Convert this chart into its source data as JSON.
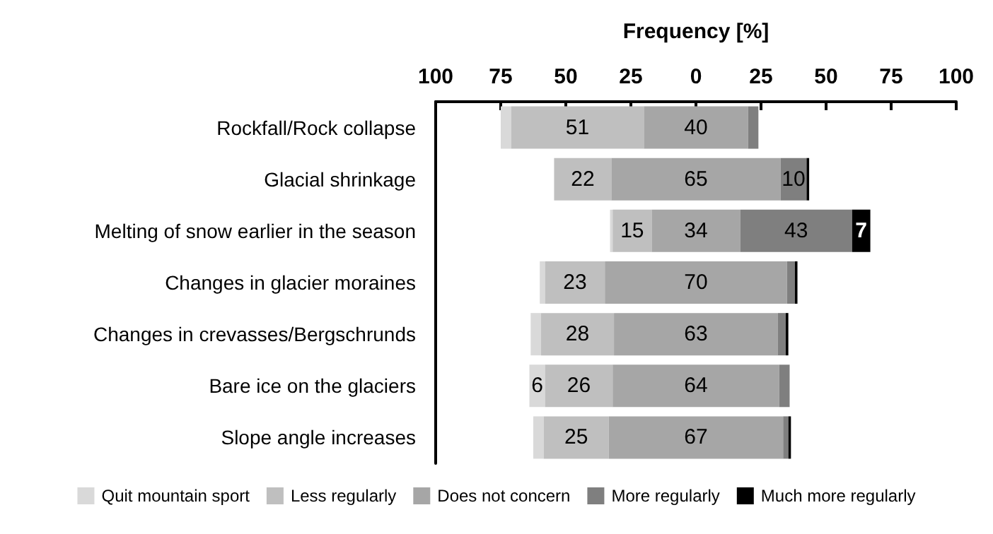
{
  "chart_data": {
    "type": "bar",
    "orientation": "horizontal",
    "xlabel": "Frequency [%]",
    "categories": [
      "Rockfall/Rock collapse",
      "Glacial shrinkage",
      "Melting of snow earlier in the season",
      "Changes in glacier moraines",
      "Changes in crevasses/Bergschrunds",
      "Bare ice on the glaciers",
      "Slope angle increases"
    ],
    "series": [
      {
        "name": "Quit mountain sport",
        "color": "#d9d9d9",
        "base": [
          -75,
          null,
          -33,
          -60,
          -63.5,
          -64,
          -62.5
        ],
        "values": [
          4,
          null,
          1,
          2,
          4,
          6,
          4
        ],
        "value_labels": [
          null,
          null,
          null,
          null,
          null,
          "6",
          null
        ]
      },
      {
        "name": "Less regularly",
        "color": "#bfbfbf",
        "base": [
          -71,
          -54.5,
          -32,
          -58,
          -59.5,
          -58,
          -58.5
        ],
        "values": [
          51,
          22,
          15,
          23,
          28,
          26,
          25
        ],
        "value_labels": [
          "51",
          "22",
          "15",
          "23",
          "28",
          "26",
          "25"
        ]
      },
      {
        "name": "Does not concern",
        "color": "#a6a6a6",
        "base": [
          -20,
          -32.5,
          -17,
          -35,
          -31.5,
          -32,
          -33.5
        ],
        "values": [
          40,
          65,
          34,
          70,
          63,
          64,
          67
        ],
        "value_labels": [
          "40",
          "65",
          "34",
          "70",
          "63",
          "64",
          "67"
        ]
      },
      {
        "name": "More regularly",
        "color": "#7f7f7f",
        "base": [
          20,
          32.5,
          17,
          35,
          31.5,
          32,
          33.5
        ],
        "values": [
          4,
          10,
          43,
          3,
          3,
          4,
          2
        ],
        "value_labels": [
          null,
          "10",
          "43",
          null,
          null,
          null,
          null
        ]
      },
      {
        "name": "Much more regularly",
        "color": "#000000",
        "base": [
          null,
          42.5,
          60,
          38,
          34.5,
          null,
          35.5
        ],
        "values": [
          null,
          1,
          7,
          1,
          1,
          null,
          1
        ],
        "value_labels": [
          null,
          null,
          "7",
          null,
          null,
          null,
          null
        ]
      }
    ],
    "xlim": [
      -100,
      100
    ],
    "xticks": [
      {
        "value": -100,
        "label": "100"
      },
      {
        "value": -75,
        "label": "75"
      },
      {
        "value": -50,
        "label": "50"
      },
      {
        "value": -25,
        "label": "25"
      },
      0,
      25,
      50,
      75,
      100
    ],
    "legend": "bottom",
    "grid": false
  }
}
